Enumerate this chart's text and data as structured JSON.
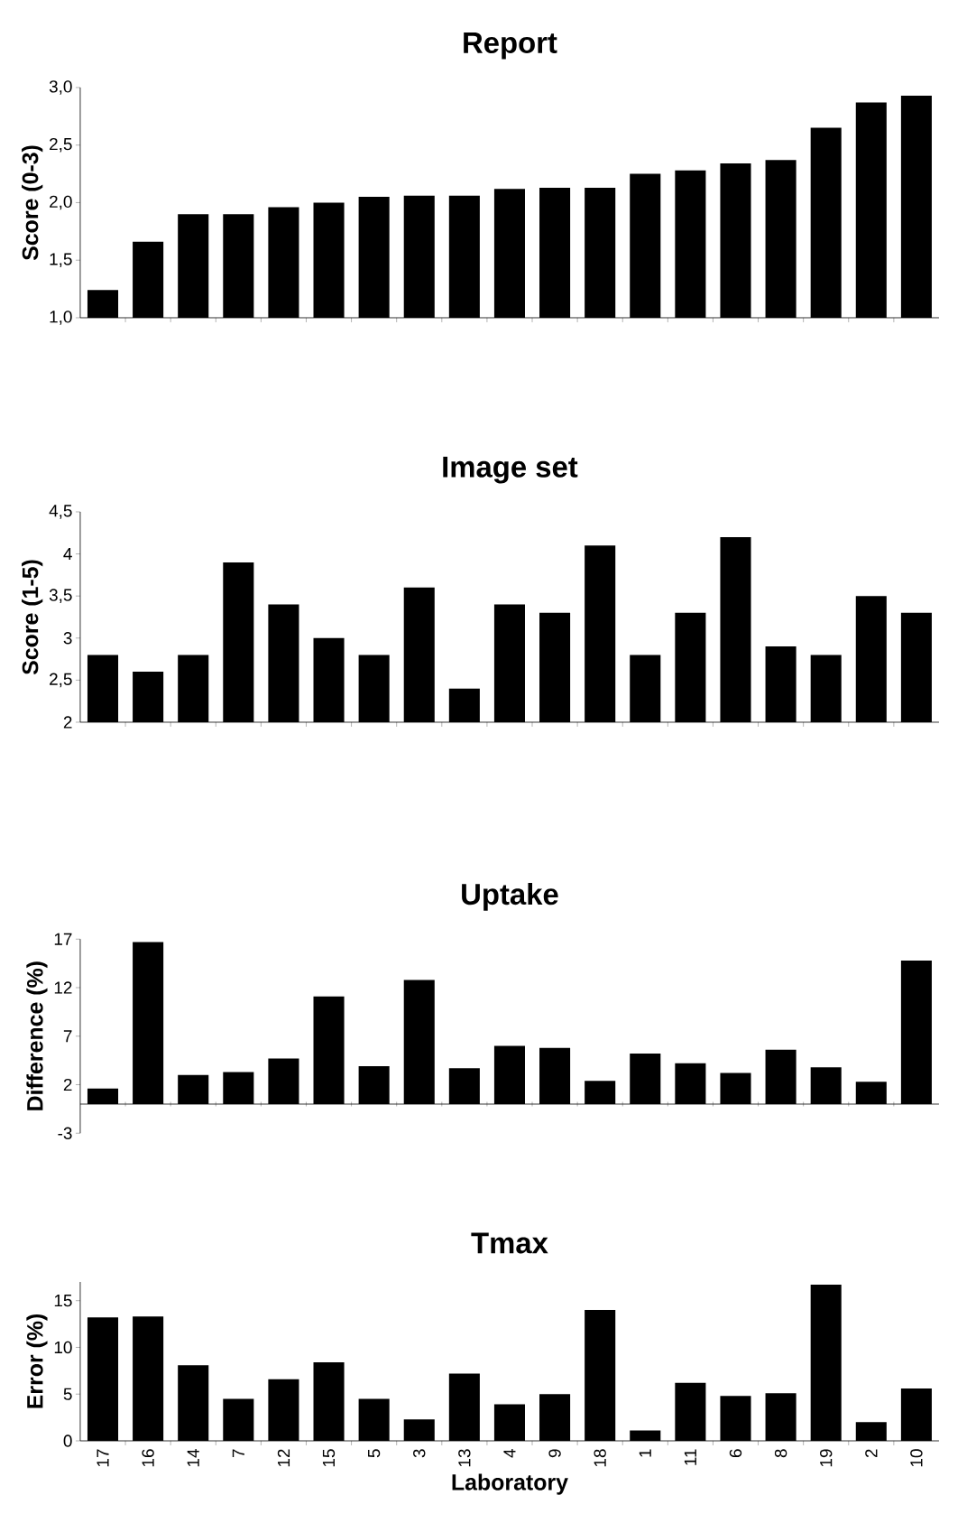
{
  "chart_data": [
    {
      "type": "bar",
      "title": "Report",
      "ylabel": "Score (0-3)",
      "tick_labels": "y",
      "categories": [
        "17",
        "16",
        "14",
        "7",
        "12",
        "15",
        "5",
        "3",
        "13",
        "4",
        "9",
        "18",
        "1",
        "11",
        "6",
        "8",
        "19",
        "2",
        "10"
      ],
      "values": [
        1.24,
        1.66,
        1.9,
        1.9,
        1.96,
        2.0,
        2.05,
        2.06,
        2.06,
        2.12,
        2.13,
        2.13,
        2.25,
        2.28,
        2.34,
        2.37,
        2.65,
        2.87,
        2.93
      ],
      "color": "#000000",
      "ylim": [
        1,
        3
      ],
      "yticks": [
        {
          "value": 1,
          "label": "1,0"
        },
        {
          "value": 1.5,
          "label": "1,5"
        },
        {
          "value": 2,
          "label": "2,0"
        },
        {
          "value": 2.5,
          "label": "2,5"
        },
        {
          "value": 3,
          "label": "3,0"
        }
      ]
    },
    {
      "type": "bar",
      "title": "Image set",
      "ylabel": "Score (1-5)",
      "tick_labels": "y",
      "categories": [
        "17",
        "16",
        "14",
        "7",
        "12",
        "15",
        "5",
        "3",
        "13",
        "4",
        "9",
        "18",
        "1",
        "11",
        "6",
        "8",
        "19",
        "2",
        "10"
      ],
      "values": [
        2.8,
        2.6,
        2.8,
        3.9,
        3.4,
        3.0,
        2.8,
        3.6,
        2.4,
        3.4,
        3.3,
        4.1,
        2.8,
        3.3,
        4.2,
        2.9,
        2.8,
        3.5,
        3.3
      ],
      "color": "#000000",
      "ylim": [
        2,
        4.5
      ],
      "yticks": [
        2,
        {
          "value": 2.5,
          "label": "2,5"
        },
        3,
        {
          "value": 3.5,
          "label": "3,5"
        },
        4,
        {
          "value": 4.5,
          "label": "4,5"
        }
      ]
    },
    {
      "type": "bar",
      "title": "Uptake",
      "ylabel": "Difference (%)",
      "tick_labels": "y",
      "categories": [
        "17",
        "16",
        "14",
        "7",
        "12",
        "15",
        "5",
        "3",
        "13",
        "4",
        "9",
        "18",
        "1",
        "11",
        "6",
        "8",
        "19",
        "2",
        "10"
      ],
      "values": [
        1.6,
        16.7,
        3.0,
        3.3,
        4.7,
        11.1,
        3.9,
        12.8,
        3.7,
        6.0,
        5.8,
        2.4,
        5.2,
        4.2,
        3.2,
        5.6,
        3.8,
        2.3,
        14.8
      ],
      "color": "#000000",
      "ylim": [
        -3,
        17
      ],
      "yticks": [
        -3,
        2,
        7,
        12,
        17
      ]
    },
    {
      "type": "bar",
      "title": "Tmax",
      "ylabel": "Error (%)",
      "xlabel": "Laboratory",
      "categories": [
        "17",
        "16",
        "14",
        "7",
        "12",
        "15",
        "5",
        "3",
        "13",
        "4",
        "9",
        "18",
        "1",
        "11",
        "6",
        "8",
        "19",
        "2",
        "10"
      ],
      "values": [
        13.2,
        13.3,
        8.1,
        4.5,
        6.6,
        8.4,
        4.5,
        2.3,
        7.2,
        3.9,
        5.0,
        14.0,
        1.1,
        6.2,
        4.8,
        5.1,
        16.7,
        2.0,
        5.6
      ],
      "color": "#000000",
      "ylim": [
        0,
        17
      ],
      "yticks": [
        0,
        5,
        10,
        15
      ]
    }
  ]
}
